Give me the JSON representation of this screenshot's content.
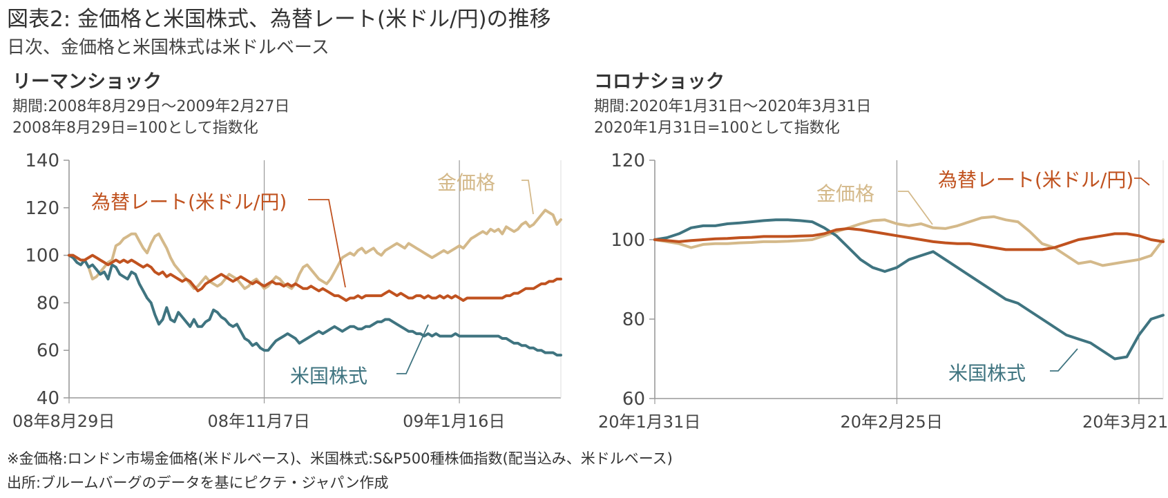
{
  "header": {
    "title": "図表2: 金価格と米国株式、為替レート(米ドル/円)の推移",
    "subtitle": "日次、金価格と米国株式は米ドルベース"
  },
  "footer": {
    "note": "※金価格:ロンドン市場金価格(米ドルベース)、米国株式:S&P500種株価指数(配当込み、米ドルベース)",
    "source": "出所:ブルームバーグのデータを基にピクテ・ジャパン作成"
  },
  "colors": {
    "gold": "#d4b98a",
    "fx": "#c0521f",
    "stock": "#3f7480",
    "axis": "#999999",
    "grid": "#e3e3e3"
  },
  "chart_data": [
    {
      "type": "line",
      "title": "リーマンショック",
      "period": "期間:2008年8月29日～2009年2月27日",
      "base_note": "2008年8月29日=100として指数化",
      "ylim": [
        40,
        140
      ],
      "yticks": [
        "140",
        "120",
        "100",
        "80",
        "60",
        "40"
      ],
      "x_count": 127,
      "xticks": [
        {
          "label": "08年8月29日",
          "i": 0
        },
        {
          "label": "08年11月7日",
          "i": 50
        },
        {
          "label": "09年1月16日",
          "i": 100
        }
      ],
      "series": [
        {
          "name": "金価格",
          "key": "gold",
          "values": [
            100,
            100,
            97,
            96,
            98,
            95,
            90,
            91,
            93,
            95,
            97,
            98,
            104,
            105,
            107,
            108,
            109,
            109,
            106,
            103,
            101,
            105,
            108,
            109,
            106,
            103,
            99,
            96,
            94,
            92,
            90,
            88,
            86,
            87,
            89,
            91,
            89,
            88,
            87,
            88,
            90,
            92,
            91,
            90,
            88,
            86,
            87,
            89,
            90,
            88,
            86,
            87,
            89,
            91,
            90,
            88,
            87,
            86,
            88,
            92,
            95,
            96,
            94,
            92,
            90,
            89,
            88,
            90,
            93,
            96,
            99,
            100,
            101,
            100,
            102,
            103,
            101,
            102,
            103,
            101,
            100,
            102,
            103,
            104,
            105,
            104,
            103,
            105,
            104,
            103,
            102,
            101,
            100,
            99,
            100,
            101,
            102,
            101,
            102,
            103,
            104,
            103,
            105,
            107,
            108,
            109,
            110,
            109,
            111,
            110,
            111,
            109,
            112,
            111,
            110,
            111,
            113,
            114,
            112,
            113,
            115,
            117,
            119,
            118,
            117,
            113,
            115
          ]
        },
        {
          "name": "為替レート(米ドル/円)",
          "key": "fx",
          "values": [
            100,
            100,
            99,
            98,
            98,
            99,
            100,
            99,
            98,
            97,
            96,
            97,
            98,
            97,
            98,
            97,
            98,
            97,
            96,
            95,
            96,
            95,
            93,
            92,
            93,
            91,
            92,
            91,
            90,
            89,
            90,
            89,
            87,
            85,
            86,
            88,
            89,
            90,
            91,
            92,
            91,
            90,
            89,
            90,
            91,
            90,
            89,
            88,
            89,
            88,
            87,
            88,
            89,
            88,
            88,
            87,
            88,
            87,
            88,
            87,
            86,
            86,
            87,
            86,
            85,
            86,
            85,
            84,
            83,
            83,
            82,
            81,
            82,
            82,
            83,
            82,
            83,
            83,
            83,
            83,
            83,
            84,
            85,
            84,
            83,
            84,
            83,
            82,
            82,
            83,
            83,
            82,
            83,
            82,
            82,
            83,
            82,
            83,
            82,
            83,
            82,
            81,
            82,
            82,
            82,
            82,
            82,
            82,
            82,
            82,
            82,
            82,
            83,
            83,
            84,
            84,
            85,
            86,
            86,
            86,
            87,
            88,
            88,
            89,
            89,
            90,
            90
          ]
        },
        {
          "name": "米国株式",
          "key": "stock",
          "values": [
            100,
            99,
            97,
            96,
            98,
            95,
            96,
            94,
            92,
            93,
            90,
            96,
            95,
            92,
            91,
            90,
            93,
            92,
            88,
            85,
            82,
            80,
            75,
            71,
            73,
            78,
            73,
            72,
            76,
            74,
            72,
            70,
            73,
            70,
            70,
            72,
            73,
            77,
            76,
            74,
            73,
            71,
            70,
            71,
            68,
            65,
            64,
            62,
            63,
            61,
            60,
            60,
            62,
            64,
            65,
            66,
            67,
            66,
            65,
            63,
            64,
            65,
            66,
            67,
            68,
            67,
            68,
            69,
            70,
            69,
            68,
            69,
            70,
            70,
            69,
            69,
            70,
            70,
            71,
            72,
            72,
            73,
            73,
            72,
            71,
            70,
            69,
            68,
            68,
            67,
            67,
            66,
            67,
            66,
            67,
            66,
            66,
            66,
            66,
            67,
            66,
            66,
            66,
            66,
            66,
            66,
            66,
            66,
            66,
            66,
            66,
            65,
            65,
            64,
            63,
            63,
            62,
            62,
            61,
            61,
            60,
            60,
            59,
            59,
            59,
            58,
            58
          ]
        }
      ]
    },
    {
      "type": "line",
      "title": "コロナショック",
      "period": "期間:2020年1月31日～2020年3月31日",
      "base_note": "2020年1月31日=100として指数化",
      "ylim": [
        60,
        120
      ],
      "yticks": [
        "120",
        "100",
        "80",
        "60"
      ],
      "x_count": 43,
      "xticks": [
        {
          "label": "20年1月31日",
          "i": 0
        },
        {
          "label": "20年2月25日",
          "i": 20
        },
        {
          "label": "20年3月21日",
          "i": 40
        }
      ],
      "series": [
        {
          "name": "金価格",
          "key": "gold",
          "values": [
            100,
            99.5,
            99,
            98,
            98.8,
            99,
            99,
            99.2,
            99.3,
            99.5,
            99.5,
            99.6,
            99.8,
            100,
            101,
            102,
            103,
            104,
            104.8,
            105,
            104,
            103.5,
            104,
            103,
            102.8,
            103.5,
            104.5,
            105.5,
            105.8,
            105,
            104.5,
            102,
            99,
            98,
            96,
            94,
            94.5,
            93.5,
            94,
            94.5,
            95,
            96,
            100
          ]
        },
        {
          "name": "為替レート(米ドル/円)",
          "key": "fx",
          "values": [
            100,
            99.8,
            99.5,
            99.8,
            100,
            100.2,
            100.3,
            100.5,
            100.6,
            100.8,
            100.8,
            100.8,
            100.9,
            101,
            101.5,
            102.5,
            102.8,
            102.5,
            102,
            101.5,
            101,
            100.5,
            100,
            99.5,
            99.2,
            99,
            99,
            98.5,
            98,
            97.5,
            97.5,
            97.5,
            97.5,
            98,
            99,
            100,
            100.5,
            101,
            101.5,
            101.5,
            101,
            100,
            99.5
          ]
        },
        {
          "name": "米国株式",
          "key": "stock",
          "values": [
            100,
            100.5,
            101.5,
            103,
            103.5,
            103.5,
            104,
            104.2,
            104.5,
            104.8,
            105,
            105,
            104.8,
            104.5,
            103,
            101,
            98,
            95,
            93,
            92,
            93,
            95,
            96,
            97,
            95,
            93,
            91,
            89,
            87,
            85,
            84,
            82,
            80,
            78,
            76,
            75,
            74,
            72,
            70,
            70.5,
            76,
            80,
            81
          ]
        }
      ]
    }
  ],
  "annotations": {
    "left_gold": "金価格",
    "left_fx": "為替レート(米ドル/円)",
    "left_stock": "米国株式",
    "right_gold": "金価格",
    "right_fx": "為替レート(米ドル/円)",
    "right_stock": "米国株式"
  }
}
